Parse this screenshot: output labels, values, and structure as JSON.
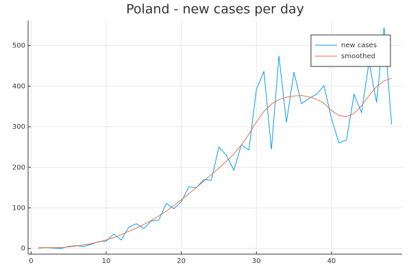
{
  "chart_data": {
    "type": "line",
    "title": "Poland - new cases per day",
    "x": [
      1,
      2,
      3,
      4,
      5,
      6,
      7,
      8,
      9,
      10,
      11,
      12,
      13,
      14,
      15,
      16,
      17,
      18,
      19,
      20,
      21,
      22,
      23,
      24,
      25,
      26,
      27,
      28,
      29,
      30,
      31,
      32,
      33,
      34,
      35,
      36,
      37,
      38,
      39,
      40,
      41,
      42,
      43,
      44,
      45,
      46,
      47,
      48
    ],
    "series": [
      {
        "name": "new cases",
        "color": "#009af9",
        "values": [
          1,
          2,
          1,
          0,
          5,
          7,
          5,
          10,
          17,
          18,
          36,
          21,
          52,
          61,
          49,
          68,
          70,
          111,
          98,
          115,
          152,
          150,
          170,
          168,
          250,
          230,
          193,
          256,
          243,
          392,
          437,
          244,
          475,
          311,
          435,
          357,
          370,
          380,
          401,
          320,
          260,
          268,
          380,
          335,
          460,
          360,
          545,
          306
        ]
      },
      {
        "name": "smoothed",
        "color": "#e26f46",
        "values": [
          2,
          2,
          2,
          2,
          4,
          6,
          9,
          12,
          16,
          21,
          27,
          34,
          42,
          50,
          59,
          69,
          80,
          92,
          106,
          120,
          135,
          150,
          166,
          182,
          198,
          215,
          233,
          255,
          282,
          312,
          338,
          356,
          367,
          373,
          376,
          377,
          374,
          368,
          358,
          340,
          328,
          325,
          333,
          352,
          377,
          399,
          413,
          420
        ]
      }
    ],
    "xlim": [
      -0.4,
      49.4
    ],
    "xticks": [
      0,
      10,
      20,
      30,
      40
    ],
    "ylim": [
      -14,
      562
    ],
    "yticks": [
      0,
      100,
      200,
      300,
      400,
      500
    ],
    "grid": true,
    "legend": "topright"
  }
}
